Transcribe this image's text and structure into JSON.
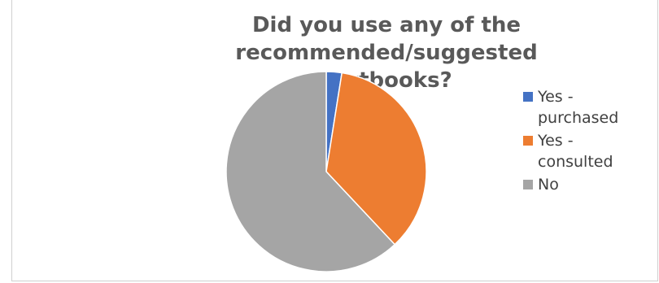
{
  "chart_data": {
    "type": "pie",
    "title_lines": [
      "Did you use any of the recommended/suggested",
      "textbooks?"
    ],
    "categories": [
      "Yes - purchased",
      "Yes - consulted",
      "No"
    ],
    "legend_lines": [
      [
        "Yes -",
        "purchased"
      ],
      [
        "Yes -",
        "consulted"
      ],
      [
        "No"
      ]
    ],
    "values": [
      2.5,
      35.5,
      62
    ],
    "colors": [
      "#4472C4",
      "#ED7D31",
      "#A5A5A5"
    ],
    "legend_position": "right"
  }
}
